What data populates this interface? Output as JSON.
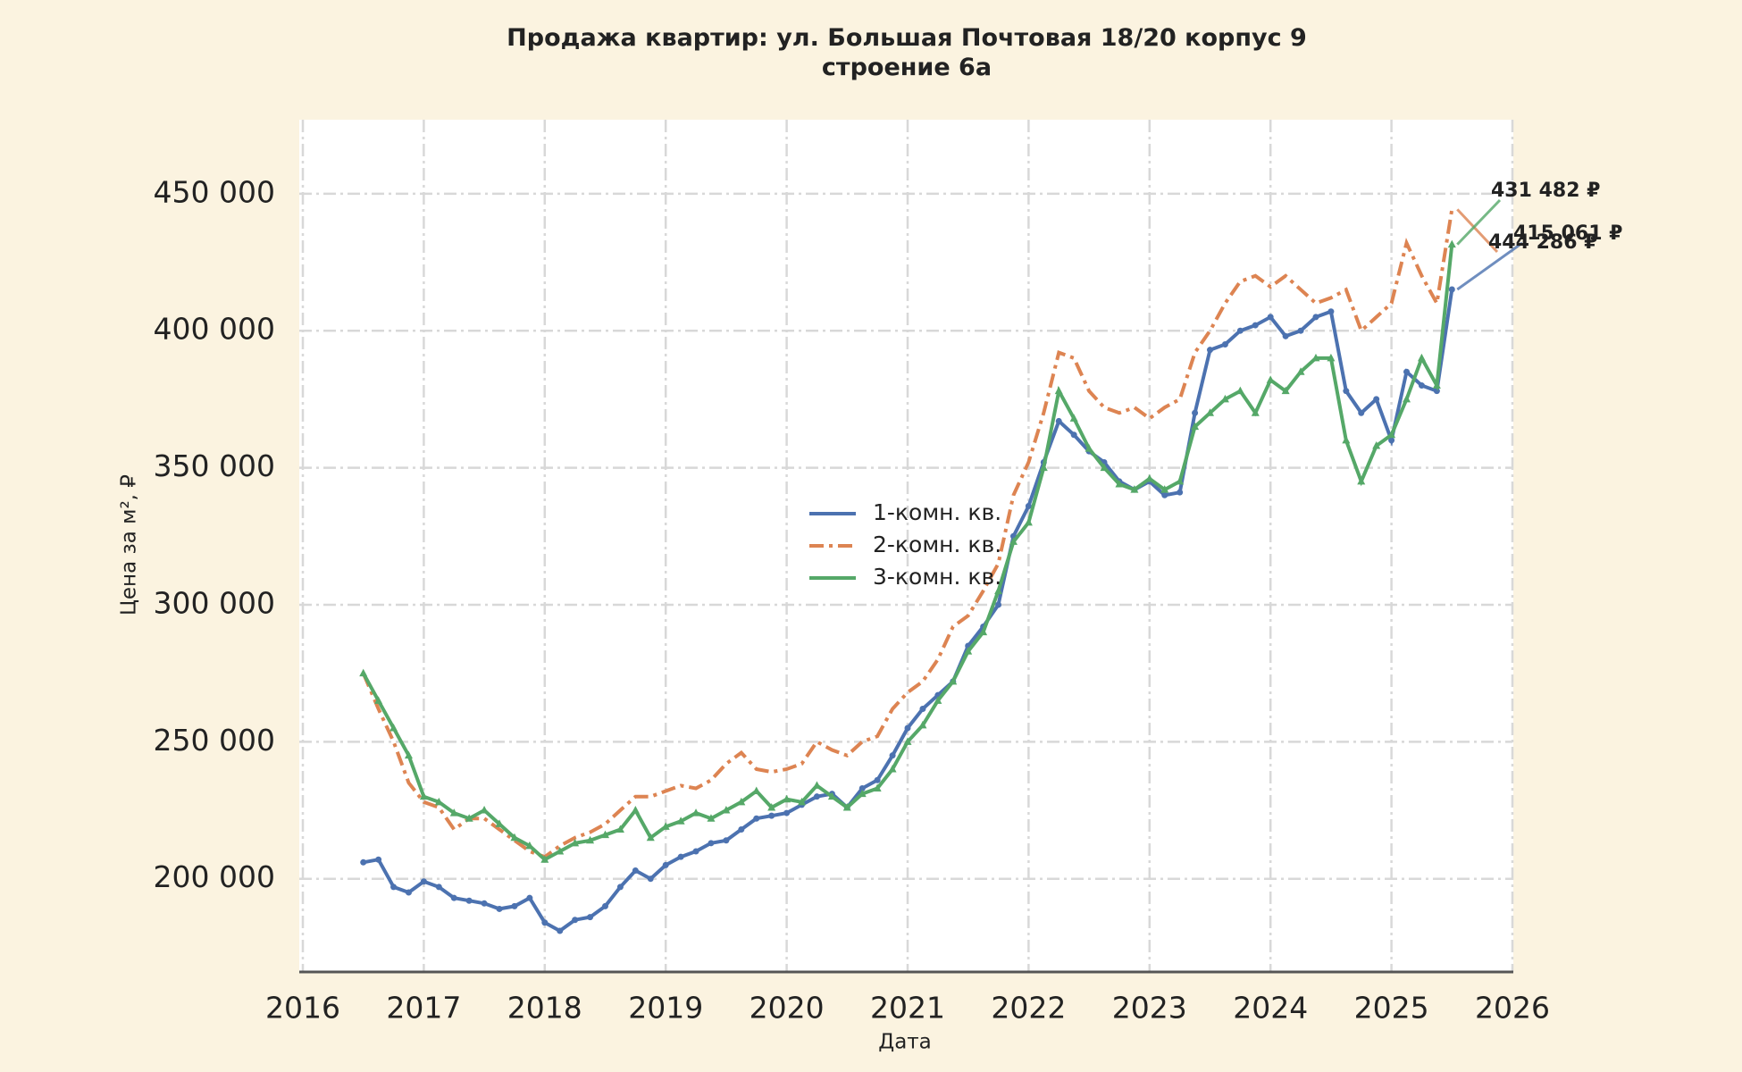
{
  "chart_data": {
    "type": "line",
    "title": "Продажа квартир: ул. Большая Почтовая 18/20 корпус 9 строение 6а",
    "x_label": "Дата",
    "y_label": "Цена за м², ₽",
    "xlim": [
      2016,
      2026
    ],
    "xticks": [
      2016,
      2017,
      2018,
      2019,
      2020,
      2021,
      2022,
      2023,
      2024,
      2025,
      2026
    ],
    "ylim": [
      166000,
      477000
    ],
    "yticks": [
      {
        "value": 200000,
        "label": "200 000"
      },
      {
        "value": 250000,
        "label": "250 000"
      },
      {
        "value": 300000,
        "label": "300 000"
      },
      {
        "value": 350000,
        "label": "350 000"
      },
      {
        "value": 400000,
        "label": "400 000"
      },
      {
        "value": 450000,
        "label": "450 000"
      }
    ],
    "grid": true,
    "x": [
      2016.5,
      2016.625,
      2016.75,
      2016.875,
      2017,
      2017.125,
      2017.25,
      2017.375,
      2017.5,
      2017.625,
      2017.75,
      2017.875,
      2018,
      2018.125,
      2018.25,
      2018.375,
      2018.5,
      2018.625,
      2018.75,
      2018.875,
      2019,
      2019.125,
      2019.25,
      2019.375,
      2019.5,
      2019.625,
      2019.75,
      2019.875,
      2020,
      2020.125,
      2020.25,
      2020.375,
      2020.5,
      2020.625,
      2020.75,
      2020.875,
      2021,
      2021.125,
      2021.25,
      2021.375,
      2021.5,
      2021.625,
      2021.75,
      2021.875,
      2022,
      2022.125,
      2022.25,
      2022.375,
      2022.5,
      2022.625,
      2022.75,
      2022.875,
      2023,
      2023.125,
      2023.25,
      2023.375,
      2023.5,
      2023.625,
      2023.75,
      2023.875,
      2024,
      2024.125,
      2024.25,
      2024.375,
      2024.5,
      2024.625,
      2024.75,
      2024.875,
      2025,
      2025.125,
      2025.25,
      2025.375,
      2025.5
    ],
    "series": [
      {
        "name": "1-комн. кв.",
        "color": "#4c72b0",
        "dash": "solid",
        "marker": "circle",
        "values": [
          206000,
          207000,
          197000,
          195000,
          199000,
          197000,
          193000,
          192000,
          191000,
          189000,
          190000,
          193000,
          184000,
          181000,
          185000,
          186000,
          190000,
          197000,
          203000,
          200000,
          205000,
          208000,
          210000,
          213000,
          214000,
          218000,
          222000,
          223000,
          224000,
          227000,
          230000,
          231000,
          226000,
          233000,
          236000,
          245000,
          255000,
          262000,
          267000,
          272000,
          285000,
          292000,
          300000,
          325000,
          336000,
          352000,
          367000,
          362000,
          356000,
          352000,
          345000,
          342000,
          345000,
          340000,
          341000,
          370000,
          393000,
          395000,
          400000,
          402000,
          405000,
          398000,
          400000,
          405000,
          407000,
          378000,
          370000,
          375000,
          360000,
          385000,
          380000,
          378000,
          415061
        ]
      },
      {
        "name": "2-комн. кв.",
        "color": "#dd8452",
        "dash": "dash-dot",
        "marker": "none",
        "values": [
          275000,
          262000,
          250000,
          235000,
          228000,
          226000,
          218000,
          222000,
          222000,
          218000,
          214000,
          210000,
          208000,
          212000,
          215000,
          217000,
          220000,
          225000,
          230000,
          230000,
          232000,
          234000,
          233000,
          236000,
          242000,
          246000,
          240000,
          239000,
          240000,
          242000,
          250000,
          247000,
          245000,
          250000,
          252000,
          262000,
          268000,
          272000,
          280000,
          292000,
          296000,
          305000,
          315000,
          340000,
          352000,
          370000,
          392000,
          390000,
          378000,
          372000,
          370000,
          372000,
          368000,
          372000,
          375000,
          392000,
          400000,
          410000,
          418000,
          420000,
          416000,
          420000,
          415000,
          410000,
          412000,
          415000,
          400000,
          405000,
          410000,
          432000,
          420000,
          410000,
          444286
        ]
      },
      {
        "name": "3-комн. кв.",
        "color": "#55a868",
        "dash": "solid",
        "marker": "triangle",
        "values": [
          275000,
          265000,
          255000,
          245000,
          230000,
          228000,
          224000,
          222000,
          225000,
          220000,
          215000,
          212000,
          207000,
          210000,
          213000,
          214000,
          216000,
          218000,
          225000,
          215000,
          219000,
          221000,
          224000,
          222000,
          225000,
          228000,
          232000,
          226000,
          229000,
          228000,
          234000,
          230000,
          226000,
          231000,
          233000,
          240000,
          250000,
          256000,
          265000,
          272000,
          283000,
          290000,
          305000,
          323000,
          330000,
          350000,
          378000,
          368000,
          357000,
          350000,
          344000,
          342000,
          346000,
          342000,
          345000,
          365000,
          370000,
          375000,
          378000,
          370000,
          382000,
          378000,
          385000,
          390000,
          390000,
          360000,
          345000,
          358000,
          362000,
          375000,
          390000,
          380000,
          431482
        ]
      }
    ],
    "annotations": [
      "415 061 ₽",
      "444 286 ₽",
      "431 482 ₽"
    ]
  }
}
